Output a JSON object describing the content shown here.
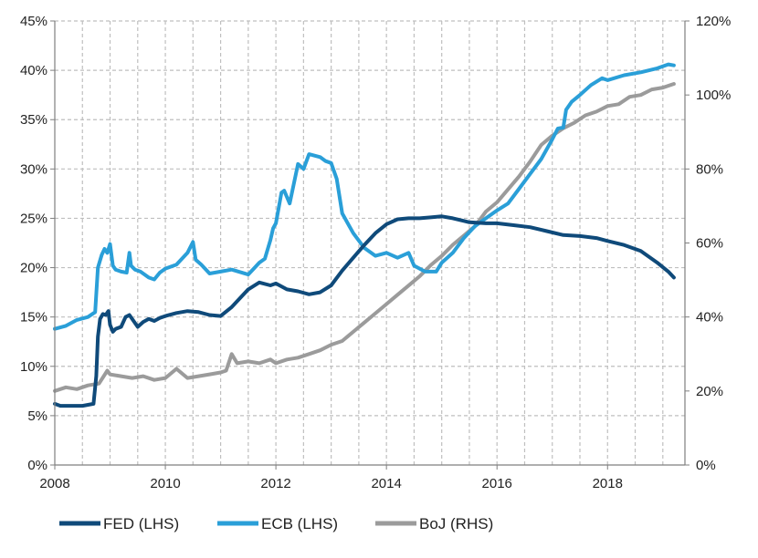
{
  "chart_data": {
    "type": "line",
    "title": "",
    "xlabel": "",
    "ylabel": "",
    "ylabel_right": "",
    "x_ticks": [
      "2008",
      "2010",
      "2012",
      "2014",
      "2016",
      "2018"
    ],
    "x_tick_values": [
      2008,
      2010,
      2012,
      2014,
      2016,
      2018
    ],
    "y_left_ticks": [
      "0%",
      "5%",
      "10%",
      "15%",
      "20%",
      "25%",
      "30%",
      "35%",
      "40%",
      "45%"
    ],
    "y_left_tick_values": [
      0,
      5,
      10,
      15,
      20,
      25,
      30,
      35,
      40,
      45
    ],
    "y_right_ticks": [
      "0%",
      "20%",
      "40%",
      "60%",
      "80%",
      "100%",
      "120%"
    ],
    "y_right_tick_values": [
      0,
      20,
      40,
      60,
      80,
      100,
      120
    ],
    "xlim": [
      2008,
      2019.4
    ],
    "ylim_left": [
      0,
      45
    ],
    "ylim_right": [
      0,
      120
    ],
    "grid": true,
    "legend_position": "bottom",
    "series": [
      {
        "name": "FED (LHS)",
        "axis": "left",
        "color": "#0f4a7a",
        "x": [
          2008.0,
          2008.1,
          2008.3,
          2008.5,
          2008.7,
          2008.75,
          2008.78,
          2008.82,
          2008.87,
          2008.92,
          2008.97,
          2009.0,
          2009.05,
          2009.1,
          2009.2,
          2009.28,
          2009.35,
          2009.5,
          2009.6,
          2009.7,
          2009.8,
          2009.9,
          2010.0,
          2010.2,
          2010.4,
          2010.6,
          2010.8,
          2011.0,
          2011.2,
          2011.5,
          2011.7,
          2011.9,
          2012.0,
          2012.2,
          2012.4,
          2012.6,
          2012.8,
          2013.0,
          2013.2,
          2013.4,
          2013.6,
          2013.8,
          2014.0,
          2014.2,
          2014.4,
          2014.6,
          2014.8,
          2015.0,
          2015.2,
          2015.5,
          2015.8,
          2016.0,
          2016.3,
          2016.6,
          2016.9,
          2017.2,
          2017.5,
          2017.8,
          2018.0,
          2018.3,
          2018.6,
          2018.9,
          2019.1,
          2019.2
        ],
        "values": [
          6.2,
          6.0,
          6.0,
          6.0,
          6.2,
          9.0,
          13.0,
          14.8,
          15.3,
          15.2,
          15.6,
          14.2,
          13.5,
          13.8,
          14.0,
          15.0,
          15.2,
          14.0,
          14.5,
          14.8,
          14.6,
          14.9,
          15.1,
          15.4,
          15.6,
          15.5,
          15.2,
          15.1,
          16.0,
          17.8,
          18.5,
          18.2,
          18.4,
          17.8,
          17.6,
          17.3,
          17.5,
          18.2,
          19.7,
          21.0,
          22.3,
          23.5,
          24.4,
          24.9,
          25.0,
          25.0,
          25.1,
          25.2,
          25.0,
          24.6,
          24.5,
          24.5,
          24.3,
          24.1,
          23.7,
          23.3,
          23.2,
          23.0,
          22.7,
          22.3,
          21.7,
          20.5,
          19.6,
          19.0
        ]
      },
      {
        "name": "ECB (LHS)",
        "axis": "left",
        "color": "#2a9fd8",
        "x": [
          2008.0,
          2008.2,
          2008.4,
          2008.6,
          2008.73,
          2008.78,
          2008.85,
          2008.9,
          2008.95,
          2009.0,
          2009.05,
          2009.1,
          2009.2,
          2009.3,
          2009.35,
          2009.38,
          2009.45,
          2009.55,
          2009.7,
          2009.8,
          2009.9,
          2010.0,
          2010.2,
          2010.4,
          2010.5,
          2010.55,
          2010.65,
          2010.8,
          2011.0,
          2011.2,
          2011.5,
          2011.6,
          2011.7,
          2011.8,
          2011.9,
          2011.95,
          2012.0,
          2012.1,
          2012.15,
          2012.25,
          2012.4,
          2012.5,
          2012.6,
          2012.8,
          2012.9,
          2013.0,
          2013.1,
          2013.2,
          2013.4,
          2013.6,
          2013.8,
          2014.0,
          2014.2,
          2014.4,
          2014.5,
          2014.7,
          2014.9,
          2015.0,
          2015.2,
          2015.4,
          2015.6,
          2015.8,
          2016.0,
          2016.2,
          2016.4,
          2016.6,
          2016.8,
          2017.0,
          2017.1,
          2017.2,
          2017.25,
          2017.35,
          2017.5,
          2017.7,
          2017.9,
          2018.0,
          2018.3,
          2018.6,
          2018.9,
          2019.1,
          2019.2
        ],
        "values": [
          13.8,
          14.1,
          14.7,
          15.0,
          15.5,
          20.0,
          21.3,
          21.9,
          21.5,
          22.4,
          20.2,
          19.8,
          19.6,
          19.5,
          21.5,
          20.2,
          19.8,
          19.6,
          19.0,
          18.8,
          19.5,
          19.9,
          20.3,
          21.5,
          22.6,
          20.8,
          20.3,
          19.4,
          19.6,
          19.8,
          19.3,
          19.9,
          20.5,
          20.9,
          22.8,
          24.0,
          24.5,
          27.6,
          27.8,
          26.5,
          30.5,
          30.0,
          31.5,
          31.2,
          30.8,
          30.6,
          29.0,
          25.5,
          23.5,
          22.0,
          21.2,
          21.5,
          21.0,
          21.5,
          20.2,
          19.6,
          19.6,
          20.5,
          21.5,
          23.0,
          24.2,
          25.0,
          25.8,
          26.5,
          28.0,
          29.5,
          31.0,
          33.0,
          34.1,
          34.2,
          36.0,
          36.8,
          37.5,
          38.5,
          39.2,
          39.0,
          39.5,
          39.8,
          40.2,
          40.6,
          40.5
        ]
      },
      {
        "name": "BoJ (RHS)",
        "axis": "right",
        "color": "#9b9b9b",
        "x": [
          2008.0,
          2008.2,
          2008.4,
          2008.6,
          2008.8,
          2008.95,
          2009.0,
          2009.2,
          2009.4,
          2009.6,
          2009.8,
          2010.0,
          2010.2,
          2010.4,
          2010.6,
          2010.8,
          2011.0,
          2011.1,
          2011.2,
          2011.3,
          2011.5,
          2011.7,
          2011.9,
          2012.0,
          2012.2,
          2012.4,
          2012.6,
          2012.8,
          2013.0,
          2013.2,
          2013.4,
          2013.6,
          2013.8,
          2014.0,
          2014.2,
          2014.4,
          2014.6,
          2014.8,
          2015.0,
          2015.2,
          2015.4,
          2015.6,
          2015.8,
          2016.0,
          2016.2,
          2016.4,
          2016.6,
          2016.8,
          2017.0,
          2017.2,
          2017.4,
          2017.6,
          2017.8,
          2018.0,
          2018.2,
          2018.4,
          2018.6,
          2018.8,
          2019.0,
          2019.2
        ],
        "values": [
          20.0,
          21.0,
          20.5,
          21.5,
          22.0,
          25.5,
          24.5,
          24.0,
          23.5,
          24.0,
          23.0,
          23.5,
          26.0,
          23.5,
          24.0,
          24.5,
          25.0,
          25.5,
          30.0,
          27.5,
          28.0,
          27.5,
          28.5,
          27.5,
          28.5,
          29.0,
          30.0,
          31.0,
          32.5,
          33.5,
          36.0,
          38.5,
          41.0,
          43.5,
          46.0,
          48.5,
          51.0,
          54.0,
          56.5,
          59.5,
          62.0,
          64.5,
          68.5,
          71.0,
          74.5,
          78.0,
          82.0,
          86.5,
          89.0,
          91.0,
          92.5,
          94.5,
          95.5,
          97.0,
          97.5,
          99.5,
          100.0,
          101.5,
          102.0,
          103.0
        ]
      }
    ]
  }
}
